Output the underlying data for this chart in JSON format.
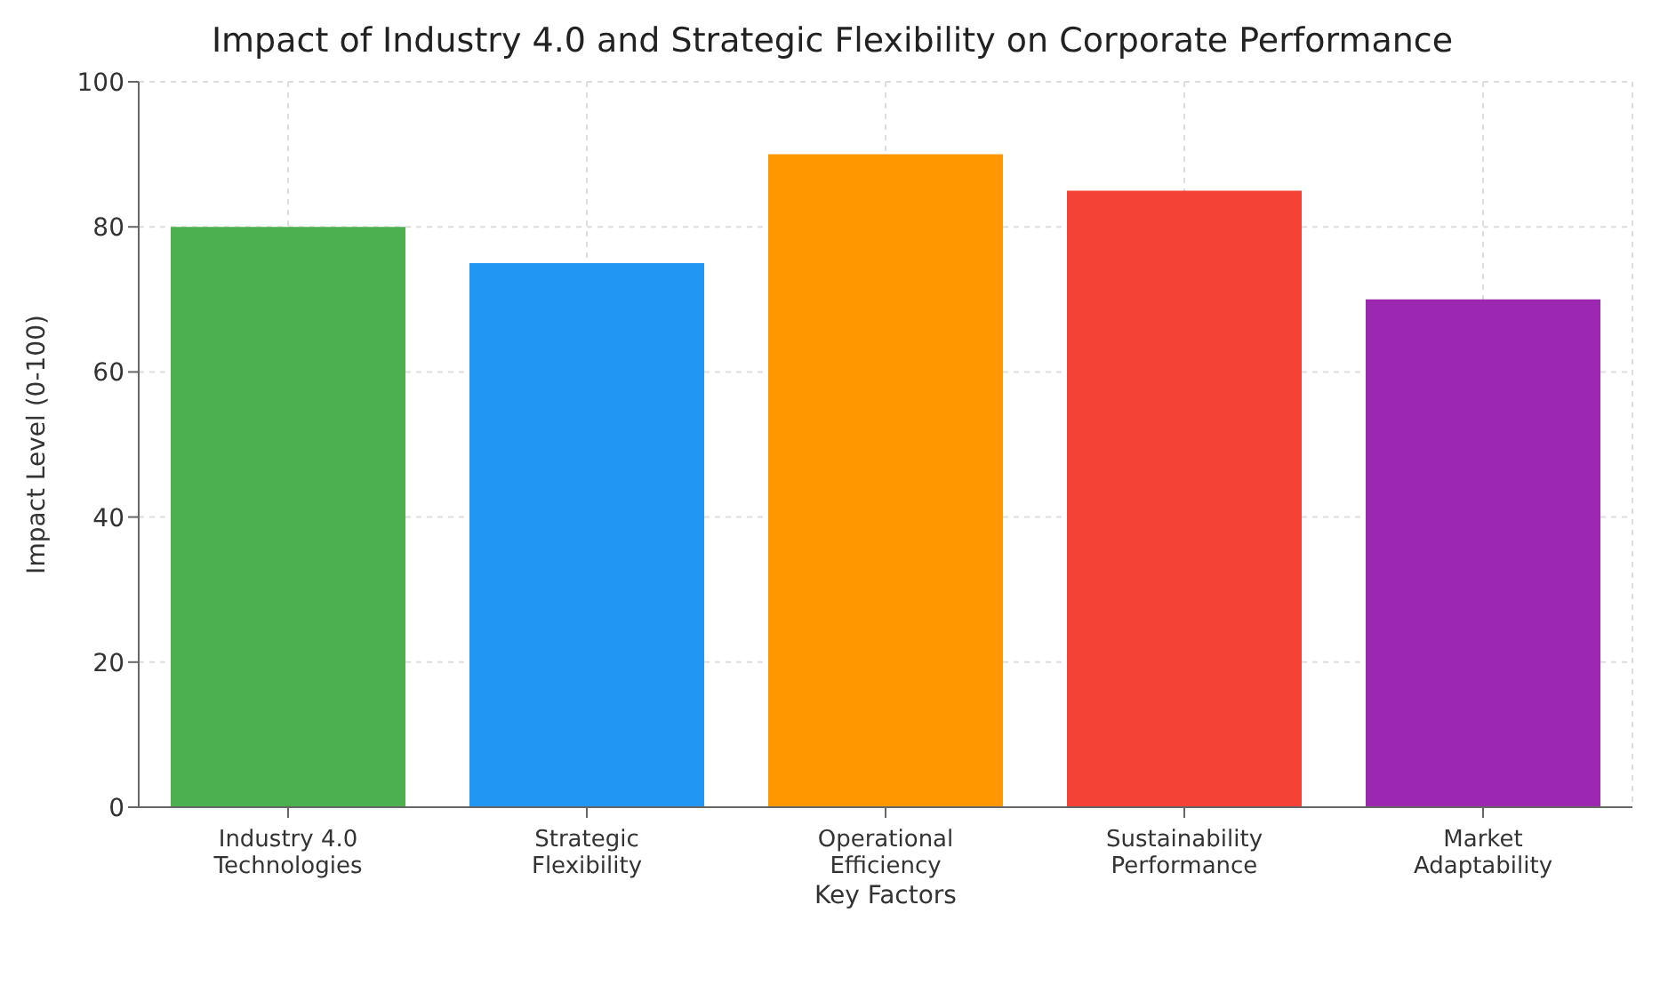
{
  "chart_data": {
    "type": "bar",
    "title": "Impact of Industry 4.0 and Strategic Flexibility on Corporate Performance",
    "xlabel": "Key Factors",
    "ylabel": "Impact Level (0-100)",
    "categories": [
      "Industry 4.0 Technologies",
      "Strategic Flexibility",
      "Operational Efficiency",
      "Sustainability Performance",
      "Market Adaptability"
    ],
    "values": [
      80,
      75,
      90,
      85,
      70
    ],
    "colors": [
      "#4caf50",
      "#2196f3",
      "#ff9800",
      "#f44336",
      "#9c27b0"
    ],
    "ylim": [
      0,
      100
    ],
    "yticks": [
      0,
      20,
      40,
      60,
      80,
      100
    ],
    "grid": true
  }
}
